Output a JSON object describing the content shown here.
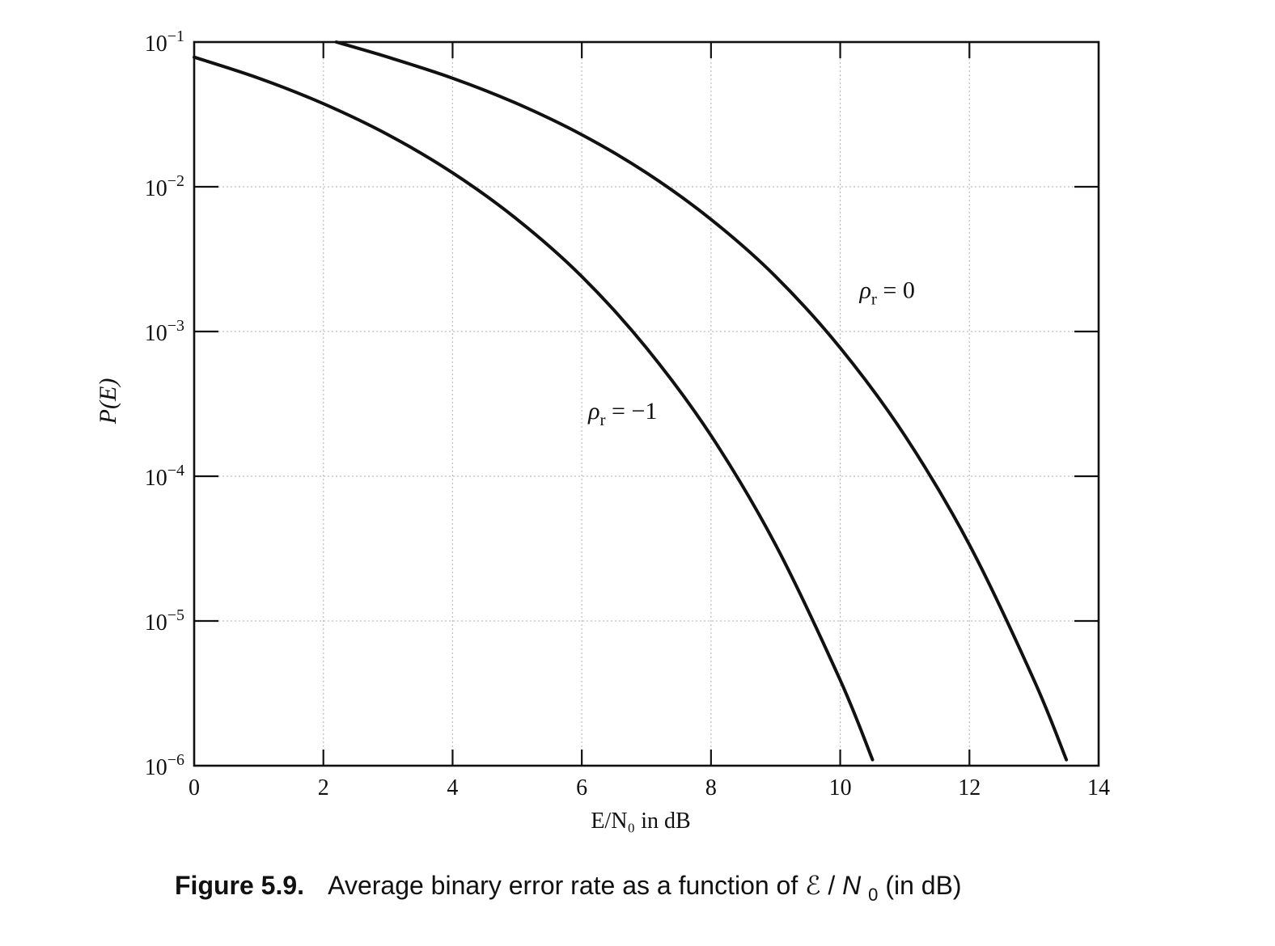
{
  "chart_data": {
    "type": "line",
    "xlabel": "E/N₀ in dB",
    "ylabel": "P(E)",
    "xlim": [
      0,
      14
    ],
    "ylim": [
      1e-06,
      0.1
    ],
    "yscale": "log",
    "grid": true,
    "x_ticks": [
      "0",
      "2",
      "4",
      "6",
      "8",
      "10",
      "12",
      "14"
    ],
    "y_ticks": [
      {
        "value": 0.1,
        "base": "10",
        "exp": "−1"
      },
      {
        "value": 0.01,
        "base": "10",
        "exp": "−2"
      },
      {
        "value": 0.001,
        "base": "10",
        "exp": "−3"
      },
      {
        "value": 0.0001,
        "base": "10",
        "exp": "−4"
      },
      {
        "value": 1e-05,
        "base": "10",
        "exp": "−5"
      },
      {
        "value": 1e-06,
        "base": "10",
        "exp": "−6"
      }
    ],
    "series": [
      {
        "name": "ρr = −1",
        "x": [
          0,
          1,
          2,
          3,
          4,
          5,
          6,
          7,
          8,
          9,
          10,
          10.5
        ],
        "y": [
          0.0786,
          0.0563,
          0.0375,
          0.0229,
          0.0125,
          0.00595,
          0.0024,
          0.00077,
          0.000191,
          3.36e-05,
          3.9e-06,
          1.1e-06
        ]
      },
      {
        "name": "ρr = 0",
        "x": [
          2.2,
          3,
          4,
          5,
          6,
          7,
          8,
          9,
          10,
          11,
          12,
          13,
          13.5
        ],
        "y": [
          0.1,
          0.0786,
          0.0563,
          0.0375,
          0.0229,
          0.0125,
          0.00595,
          0.0024,
          0.00077,
          0.000191,
          3.36e-05,
          3.9e-06,
          1.1e-06
        ]
      }
    ],
    "annotations": [
      {
        "symbol": "ρ",
        "sub": "r",
        "rest": " = −1",
        "x": 6.1,
        "y": 0.00025
      },
      {
        "symbol": "ρ",
        "sub": "r",
        "rest": " = 0",
        "x": 10.3,
        "y": 0.0017
      }
    ]
  },
  "caption": {
    "label": "Figure 5.9.",
    "text_before": "Average binary error rate as a function of ",
    "symbol_e": "ℰ",
    "slash": "/",
    "symbol_n": "N",
    "sub": "0",
    "text_after": " (in dB)"
  }
}
